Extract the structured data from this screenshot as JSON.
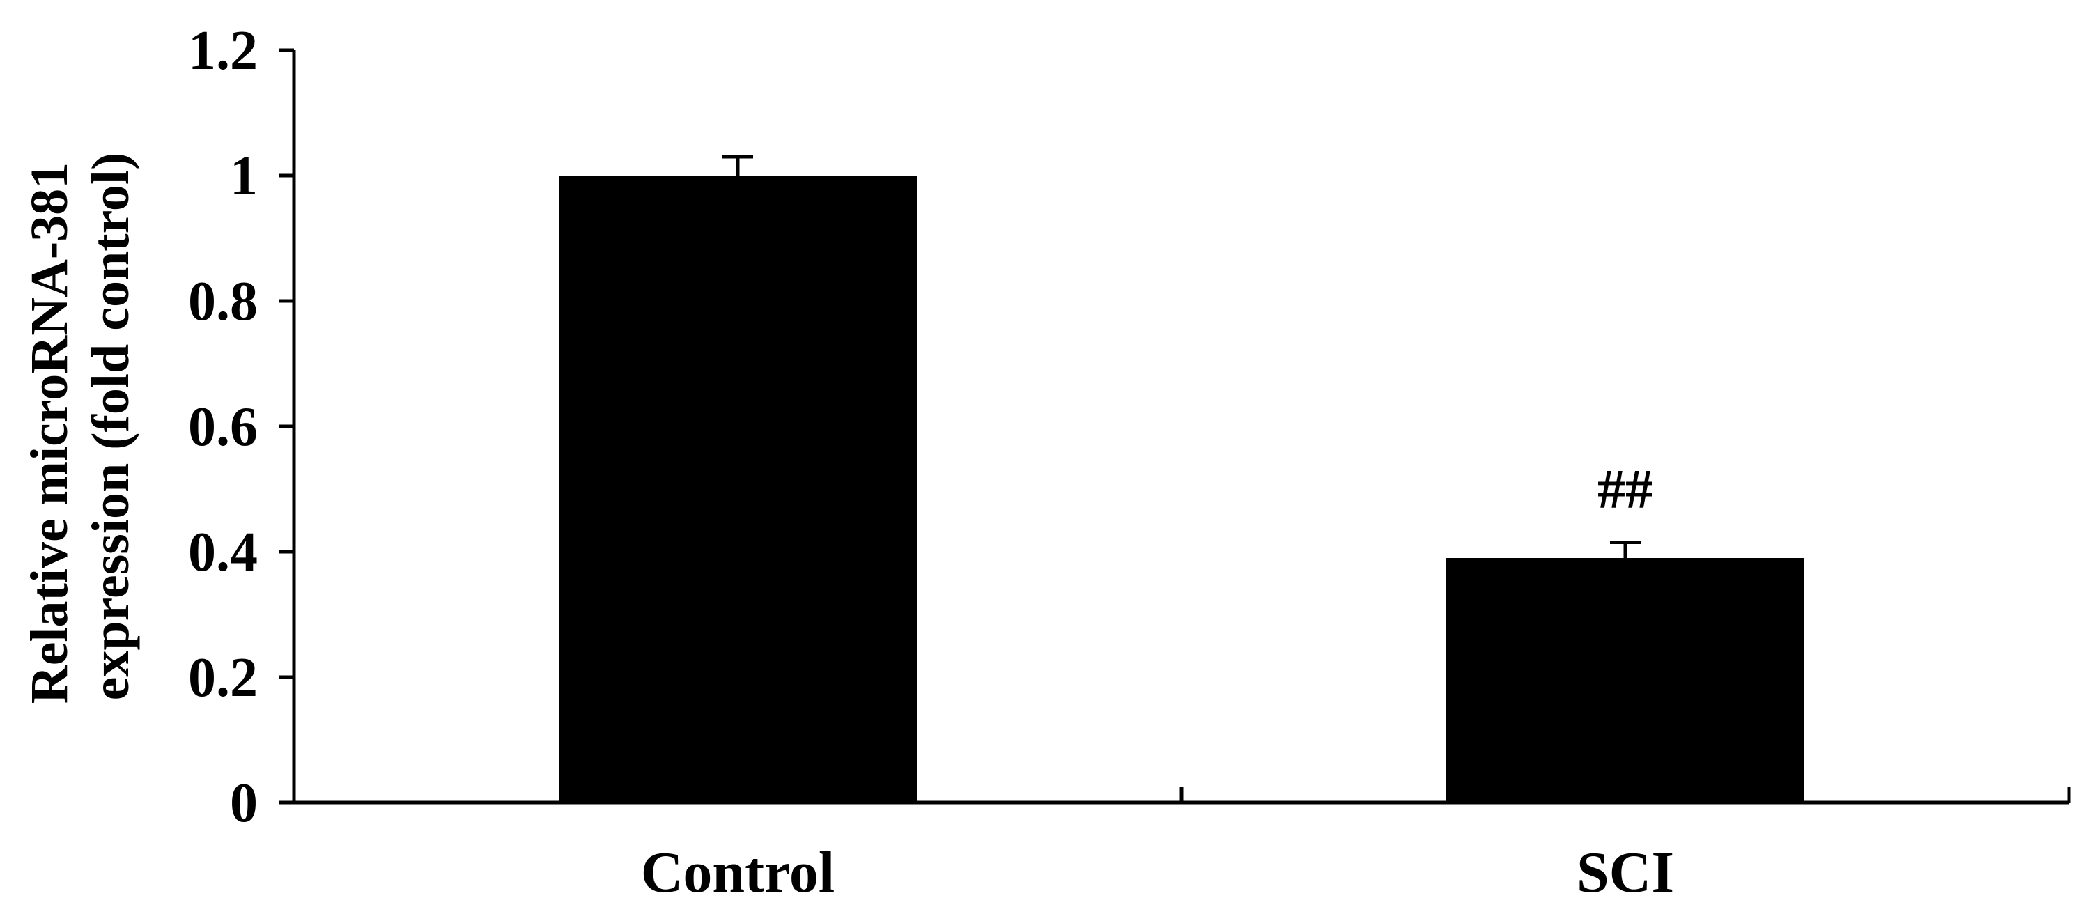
{
  "chart_data": {
    "type": "bar",
    "categories": [
      "Control",
      "SCI"
    ],
    "values": [
      1.0,
      0.39
    ],
    "errors": [
      0.03,
      0.025
    ],
    "annotations": [
      "",
      "##"
    ],
    "ylabel_lines": [
      "Relative microRNA-381",
      "expression (fold control)"
    ],
    "ylim": [
      0,
      1.2
    ],
    "yticks": [
      {
        "value": 0,
        "label": "0"
      },
      {
        "value": 0.2,
        "label": "0.2"
      },
      {
        "value": 0.4,
        "label": "0.4"
      },
      {
        "value": 0.6,
        "label": "0.6"
      },
      {
        "value": 0.8,
        "label": "0.8"
      },
      {
        "value": 1,
        "label": "1"
      },
      {
        "value": 1.2,
        "label": "1.2"
      }
    ],
    "bar_color": "#000000",
    "grid": false,
    "legend": "none"
  }
}
